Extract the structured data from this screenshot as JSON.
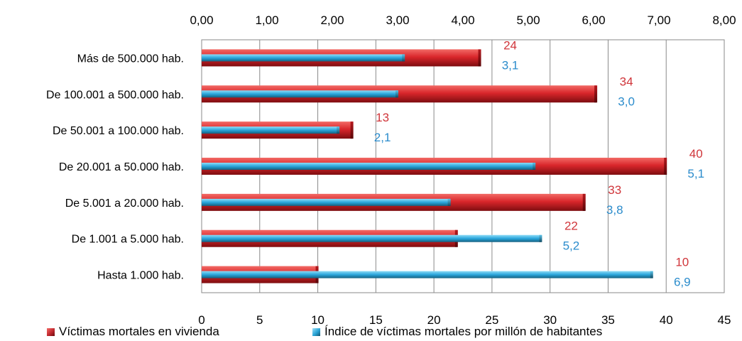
{
  "chart_data": {
    "type": "bar",
    "orientation": "horizontal",
    "categories": [
      "Más de 500.000 hab.",
      "De 100.001 a 500.000 hab.",
      "De 50.001 a 100.000 hab.",
      "De 20.001 a 50.000 hab.",
      "De 5.001 a 20.000 hab.",
      "De 1.001 a 5.000 hab.",
      "Hasta 1.000 hab."
    ],
    "series": [
      {
        "name": "Víctimas mortales en vivienda",
        "axis": "bottom",
        "values": [
          24,
          34,
          13,
          40,
          33,
          22,
          10
        ],
        "labels": [
          "24",
          "34",
          "13",
          "40",
          "33",
          "22",
          "10"
        ],
        "color": "#c0282e"
      },
      {
        "name": "Índice de víctimas mortales por millón de habitantes",
        "axis": "top",
        "values": [
          3.1,
          3.0,
          2.1,
          5.1,
          3.8,
          5.2,
          6.9
        ],
        "labels": [
          "3,1",
          "3,0",
          "2,1",
          "5,1",
          "3,8",
          "5,2",
          "6,9"
        ],
        "color": "#29a3d6"
      }
    ],
    "top_axis": {
      "range": [
        0,
        8
      ],
      "ticks": [
        "0,00",
        "1,00",
        "2,00",
        "3,00",
        "4,00",
        "5,00",
        "6,00",
        "7,00",
        "8,00"
      ]
    },
    "bottom_axis": {
      "range": [
        0,
        45
      ],
      "ticks": [
        "0",
        "5",
        "10",
        "15",
        "20",
        "25",
        "30",
        "35",
        "40",
        "45"
      ]
    },
    "grid": "vertical",
    "legend_position": "bottom"
  },
  "legend": {
    "red_label": "Víctimas mortales en vivienda",
    "blue_label": "Índice de víctimas mortales por millón de habitantes",
    "red_color": "#c0282e",
    "blue_color": "#29a3d6"
  }
}
